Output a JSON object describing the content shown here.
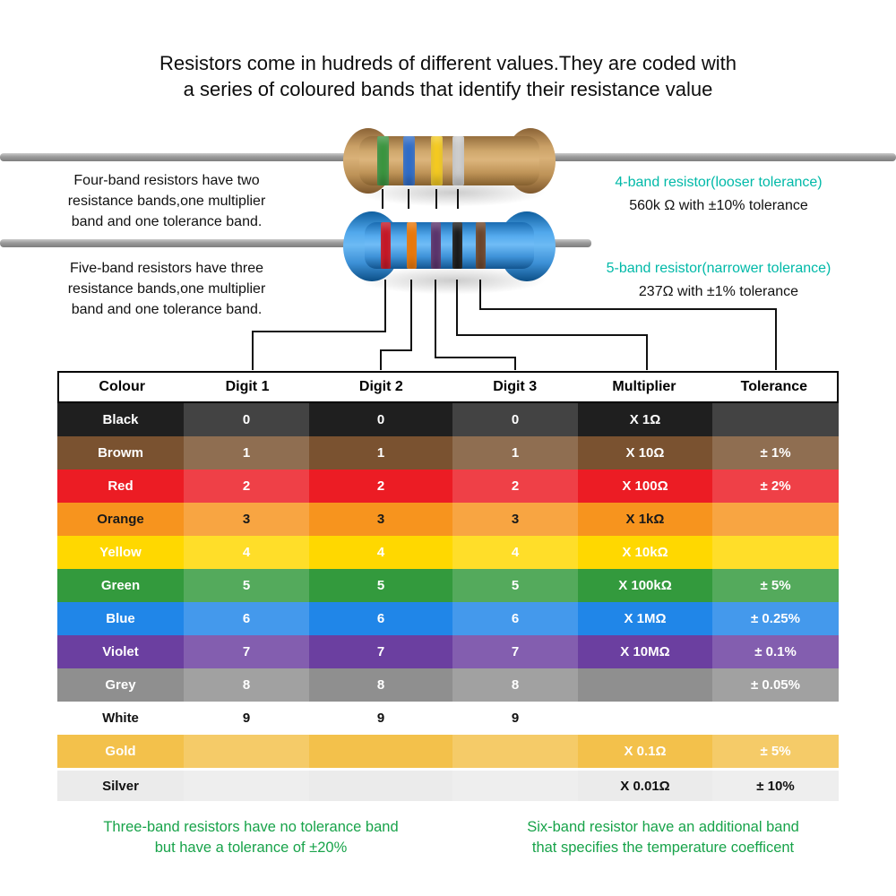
{
  "title": "Resistors come in hudreds of different values.They are coded with\na series of coloured bands that identify their resistance value",
  "palette": {
    "green": "#3a9a3e",
    "blue": "#2e6fd0",
    "yellow": "#ffd21e",
    "silver": "#d6d6d6",
    "red": "#d01020",
    "orange": "#f97b00",
    "violet": "#5a2f6e",
    "black": "#141414",
    "brown": "#6e4326"
  },
  "four_band": {
    "note": "Four-band resistors have two\nresistance bands,one multiplier\nband and one tolerance band.",
    "label": "4-band resistor(looser tolerance)",
    "value": "560k Ω with ±10% tolerance",
    "bands": [
      "green",
      "blue",
      "yellow",
      "silver"
    ]
  },
  "five_band": {
    "note": "Five-band resistors have three\nresistance bands,one multiplier\nband and one tolerance band.",
    "label": "5-band resistor(narrower tolerance)",
    "value": "237Ω with ±1% tolerance",
    "bands": [
      "red",
      "orange",
      "violet",
      "black",
      "brown"
    ]
  },
  "table": {
    "headers": [
      "Colour",
      "Digit 1",
      "Digit 2",
      "Digit 3",
      "Multiplier",
      "Tolerance"
    ],
    "rows": [
      {
        "name": "Black",
        "digit1": "0",
        "digit2": "0",
        "digit3": "0",
        "multiplier": "X 1Ω",
        "tolerance": "",
        "bg": "#1f1f1f",
        "fg": "#ffffff"
      },
      {
        "name": "Browm",
        "digit1": "1",
        "digit2": "1",
        "digit3": "1",
        "multiplier": "X 10Ω",
        "tolerance": "± 1%",
        "bg": "#7a5230",
        "fg": "#ffffff"
      },
      {
        "name": "Red",
        "digit1": "2",
        "digit2": "2",
        "digit3": "2",
        "multiplier": "X 100Ω",
        "tolerance": "± 2%",
        "bg": "#ec1c24",
        "fg": "#ffffff"
      },
      {
        "name": "Orange",
        "digit1": "3",
        "digit2": "3",
        "digit3": "3",
        "multiplier": "X 1kΩ",
        "tolerance": "",
        "bg": "#f7941e",
        "fg": "#1a1a1a"
      },
      {
        "name": "Yellow",
        "digit1": "4",
        "digit2": "4",
        "digit3": "4",
        "multiplier": "X 10kΩ",
        "tolerance": "",
        "bg": "#ffd800",
        "fg": "#ffffff"
      },
      {
        "name": "Green",
        "digit1": "5",
        "digit2": "5",
        "digit3": "5",
        "multiplier": "X 100kΩ",
        "tolerance": "± 5%",
        "bg": "#339a3d",
        "fg": "#ffffff"
      },
      {
        "name": "Blue",
        "digit1": "6",
        "digit2": "6",
        "digit3": "6",
        "multiplier": "X 1MΩ",
        "tolerance": "± 0.25%",
        "bg": "#2086e8",
        "fg": "#ffffff"
      },
      {
        "name": "Violet",
        "digit1": "7",
        "digit2": "7",
        "digit3": "7",
        "multiplier": "X 10MΩ",
        "tolerance": "± 0.1%",
        "bg": "#6b3fa0",
        "fg": "#ffffff"
      },
      {
        "name": "Grey",
        "digit1": "8",
        "digit2": "8",
        "digit3": "8",
        "multiplier": "",
        "tolerance": "± 0.05%",
        "bg": "#8f8f8f",
        "fg": "#ffffff"
      },
      {
        "name": "White",
        "digit1": "9",
        "digit2": "9",
        "digit3": "9",
        "multiplier": "",
        "tolerance": "",
        "bg": "#ffffff",
        "fg": "#111111"
      },
      {
        "name": "Gold",
        "digit1": "",
        "digit2": "",
        "digit3": "",
        "multiplier": "X 0.1Ω",
        "tolerance": "± 5%",
        "bg": "#f3c14b",
        "fg": "#ffffff"
      },
      {
        "name": "Silver",
        "digit1": "",
        "digit2": "",
        "digit3": "",
        "multiplier": "X 0.01Ω",
        "tolerance": "± 10%",
        "bg": "#ebebeb",
        "fg": "#111111",
        "gap_before": true
      }
    ]
  },
  "footnotes": {
    "three_band": "Three-band resistors have no tolerance band\nbut have a tolerance of ±20%",
    "six_band": "Six-band resistor have an additional band\nthat specifies the temperature coefficent"
  },
  "colors": {
    "accent_teal": "#00b9a8",
    "footnote_green": "#18a34a"
  }
}
